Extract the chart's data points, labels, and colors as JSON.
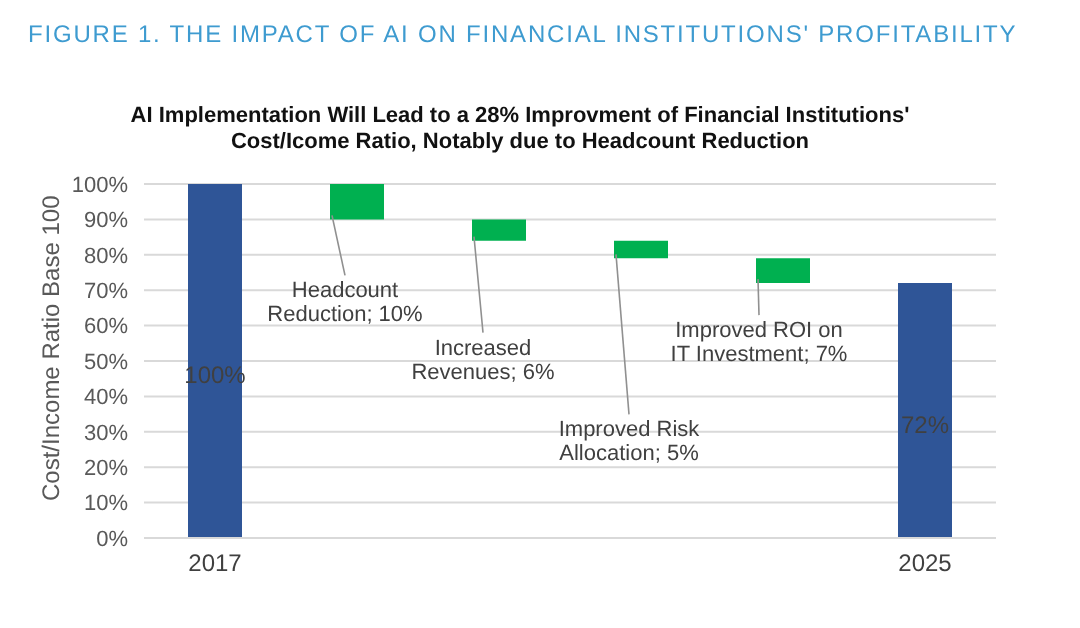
{
  "chart_data": {
    "type": "bar",
    "title": "FIGURE 1. THE IMPACT OF AI ON FINANCIAL INSTITUTIONS' PROFITABILITY",
    "subtitle": "AI Implementation Will Lead to a 28% Improvment of Financial Institutions' Cost/Icome Ratio, Notably due to Headcount Reduction",
    "ylabel": "Cost/Income Ratio Base 100",
    "categories": [
      "2017",
      null,
      null,
      null,
      null,
      "2025"
    ],
    "values": [
      100,
      10,
      6,
      5,
      7,
      72
    ],
    "base": [
      0,
      90,
      84,
      79,
      72,
      0
    ],
    "colors": [
      "#2f5597",
      "#00b050",
      "#00b050",
      "#00b050",
      "#00b050",
      "#2f5597"
    ],
    "value_labels": [
      "100%",
      "Headcount Reduction; 10%",
      "Increased Revenues; 6%",
      "Improved Risk Allocation; 5%",
      "Improved ROI on IT Investment; 7%",
      "72%"
    ],
    "ylim": [
      0,
      100
    ],
    "yticks": [
      {
        "value": 0,
        "label": "0%"
      },
      {
        "value": 10,
        "label": "10%"
      },
      {
        "value": 20,
        "label": "20%"
      },
      {
        "value": 30,
        "label": "30%"
      },
      {
        "value": 40,
        "label": "40%"
      },
      {
        "value": 50,
        "label": "50%"
      },
      {
        "value": 60,
        "label": "60%"
      },
      {
        "value": 70,
        "label": "70%"
      },
      {
        "value": 80,
        "label": "80%"
      },
      {
        "value": 90,
        "label": "90%"
      },
      {
        "value": 100,
        "label": "100%"
      }
    ],
    "grid": "y",
    "legend": false
  }
}
